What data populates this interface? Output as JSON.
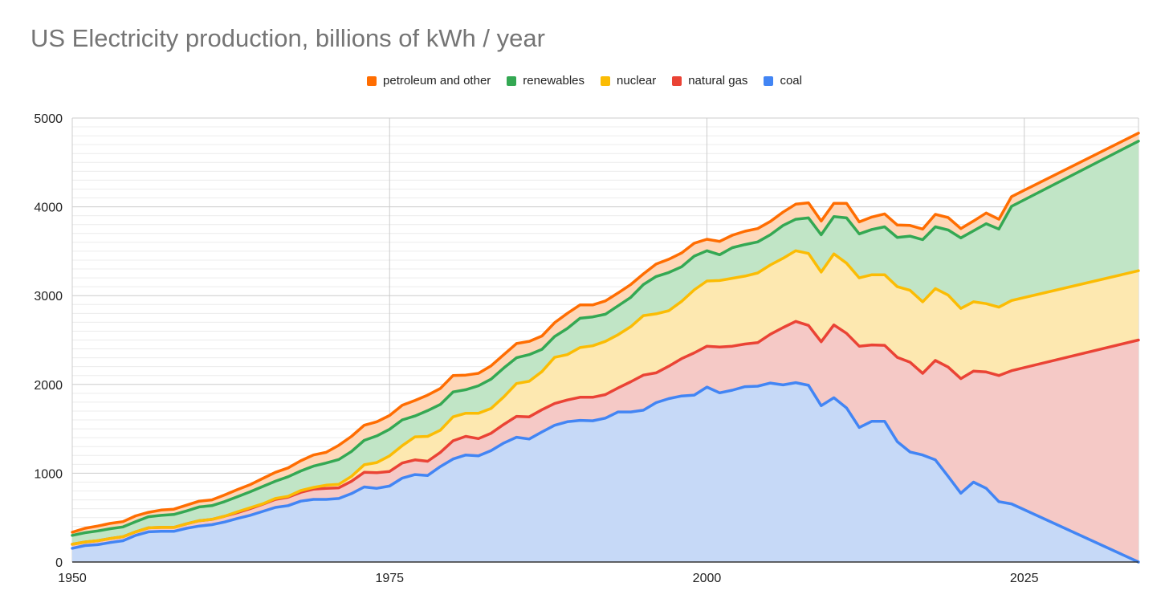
{
  "chart_data": {
    "type": "area",
    "stacked": true,
    "title": "US Electricity production, billions of kWh / year",
    "xlabel": "",
    "ylabel": "",
    "xlim": [
      1950,
      2034
    ],
    "ylim": [
      0,
      5000
    ],
    "x_ticks": [
      1950,
      1975,
      2000,
      2025
    ],
    "y_ticks": [
      0,
      1000,
      2000,
      3000,
      4000,
      5000
    ],
    "grid": true,
    "legend_position": "top",
    "x": [
      1950,
      1951,
      1952,
      1953,
      1954,
      1955,
      1956,
      1957,
      1958,
      1959,
      1960,
      1961,
      1962,
      1963,
      1964,
      1965,
      1966,
      1967,
      1968,
      1969,
      1970,
      1971,
      1972,
      1973,
      1974,
      1975,
      1976,
      1977,
      1978,
      1979,
      1980,
      1981,
      1982,
      1983,
      1984,
      1985,
      1986,
      1987,
      1988,
      1989,
      1990,
      1991,
      1992,
      1993,
      1994,
      1995,
      1996,
      1997,
      1998,
      1999,
      2000,
      2001,
      2002,
      2003,
      2004,
      2005,
      2006,
      2007,
      2008,
      2009,
      2010,
      2011,
      2012,
      2013,
      2014,
      2015,
      2016,
      2017,
      2018,
      2019,
      2020,
      2021,
      2022,
      2023,
      2024,
      2034
    ],
    "series": [
      {
        "name": "coal",
        "color": "#4285f4",
        "fill": "#c6d9f7",
        "values": [
          155,
          185,
          195,
          220,
          240,
          300,
          340,
          345,
          345,
          380,
          405,
          420,
          450,
          490,
          525,
          570,
          615,
          635,
          685,
          705,
          705,
          715,
          770,
          845,
          830,
          855,
          945,
          985,
          975,
          1075,
          1160,
          1205,
          1195,
          1255,
          1340,
          1405,
          1385,
          1465,
          1540,
          1580,
          1595,
          1590,
          1620,
          1690,
          1690,
          1710,
          1795,
          1840,
          1870,
          1880,
          1970,
          1905,
          1935,
          1975,
          1980,
          2015,
          1995,
          2020,
          1990,
          1760,
          1850,
          1735,
          1515,
          1585,
          1585,
          1355,
          1240,
          1205,
          1150,
          965,
          775,
          900,
          830,
          680,
          655,
          0
        ]
      },
      {
        "name": "natural gas",
        "color": "#ea4335",
        "fill": "#f5c9c6",
        "values": [
          45,
          40,
          45,
          45,
          45,
          40,
          45,
          45,
          45,
          50,
          60,
          60,
          65,
          65,
          75,
          80,
          90,
          95,
          100,
          115,
          125,
          120,
          140,
          165,
          175,
          165,
          170,
          165,
          160,
          160,
          205,
          210,
          195,
          195,
          210,
          235,
          250,
          250,
          245,
          245,
          260,
          265,
          265,
          270,
          340,
          395,
          335,
          365,
          420,
          475,
          460,
          515,
          495,
          480,
          490,
          550,
          645,
          690,
          675,
          720,
          820,
          840,
          915,
          860,
          855,
          950,
          1010,
          920,
          1120,
          1230,
          1290,
          1250,
          1310,
          1420,
          1500,
          2500
        ]
      },
      {
        "name": "nuclear",
        "color": "#fbbc04",
        "fill": "#fde8b0",
        "values": [
          0,
          0,
          0,
          0,
          0,
          0,
          0,
          0,
          0,
          0,
          0,
          0,
          0,
          10,
          10,
          5,
          10,
          10,
          20,
          20,
          35,
          40,
          55,
          85,
          115,
          175,
          195,
          260,
          280,
          250,
          270,
          260,
          285,
          280,
          310,
          370,
          400,
          430,
          520,
          510,
          560,
          580,
          600,
          600,
          620,
          670,
          665,
          625,
          645,
          710,
          735,
          750,
          765,
          765,
          785,
          780,
          780,
          795,
          810,
          785,
          800,
          790,
          770,
          790,
          795,
          795,
          810,
          805,
          810,
          810,
          790,
          780,
          770,
          770,
          790,
          780
        ]
      },
      {
        "name": "renewables",
        "color": "#34a853",
        "fill": "#c1e5c6",
        "values": [
          100,
          105,
          110,
          110,
          110,
          115,
          125,
          135,
          145,
          145,
          155,
          155,
          165,
          170,
          180,
          195,
          195,
          220,
          220,
          240,
          250,
          280,
          280,
          275,
          300,
          300,
          290,
          235,
          290,
          290,
          280,
          265,
          310,
          330,
          325,
          290,
          300,
          250,
          235,
          295,
          330,
          325,
          305,
          325,
          330,
          350,
          420,
          430,
          390,
          380,
          340,
          290,
          345,
          355,
          350,
          340,
          370,
          355,
          400,
          420,
          420,
          510,
          495,
          510,
          540,
          555,
          610,
          700,
          695,
          735,
          795,
          800,
          900,
          880,
          1060,
          1460
        ]
      },
      {
        "name": "petroleum and other",
        "color": "#ff6d01",
        "fill": "#fed7b8",
        "values": [
          35,
          50,
          55,
          60,
          60,
          65,
          50,
          60,
          60,
          65,
          65,
          65,
          75,
          80,
          80,
          90,
          100,
          100,
          115,
          125,
          120,
          160,
          170,
          170,
          160,
          155,
          165,
          175,
          175,
          180,
          185,
          165,
          140,
          150,
          150,
          160,
          150,
          150,
          155,
          170,
          150,
          135,
          150,
          145,
          145,
          120,
          140,
          150,
          155,
          145,
          130,
          150,
          140,
          150,
          150,
          150,
          150,
          170,
          170,
          155,
          150,
          165,
          135,
          140,
          145,
          140,
          120,
          120,
          140,
          140,
          105,
          110,
          120,
          110,
          110,
          90
        ]
      }
    ]
  }
}
